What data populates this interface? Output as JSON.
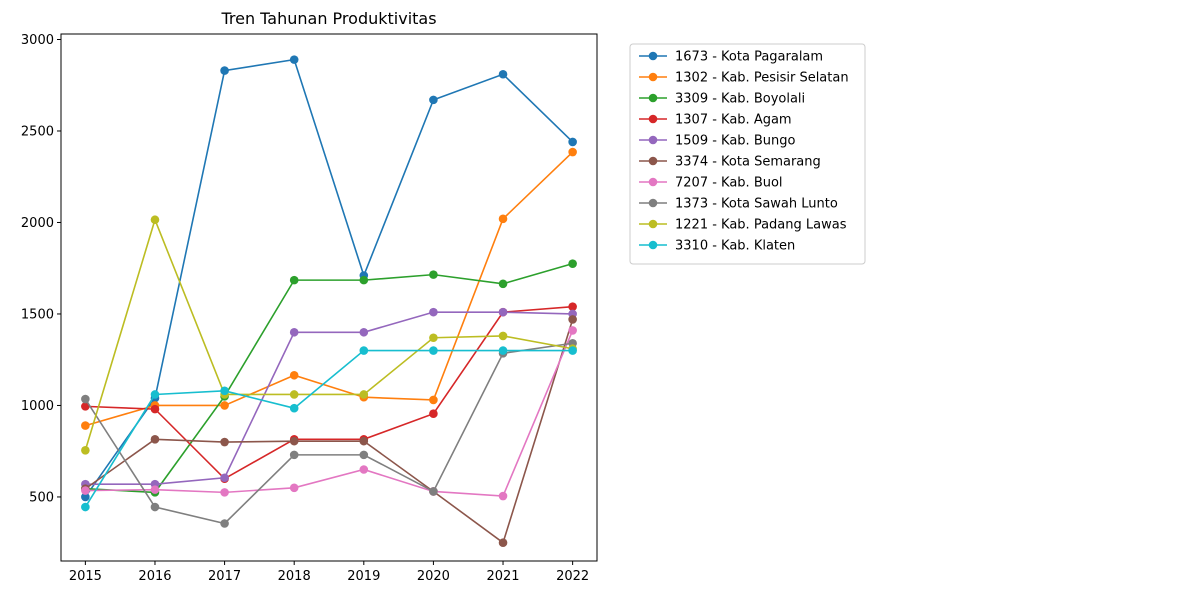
{
  "chart_data": {
    "type": "line",
    "title": "Tren Tahunan Produktivitas",
    "xlabel": "",
    "ylabel": "",
    "x": [
      2015,
      2016,
      2017,
      2018,
      2019,
      2020,
      2021,
      2022
    ],
    "x_tick_labels": [
      "2015",
      "2016",
      "2017",
      "2018",
      "2019",
      "2020",
      "2021",
      "2022"
    ],
    "ylim": [
      150,
      3030
    ],
    "y_ticks": [
      500,
      1000,
      1500,
      2000,
      2500,
      3000
    ],
    "y_tick_labels": [
      "500",
      "1000",
      "1500",
      "2000",
      "2500",
      "3000"
    ],
    "grid": false,
    "legend_position": "outside-right-top",
    "series": [
      {
        "name": "1673 - Kota Pagaralam",
        "color": "#1f77b4",
        "values": [
          500,
          1040,
          2830,
          2890,
          1710,
          2670,
          2810,
          2440
        ]
      },
      {
        "name": "1302 - Kab. Pesisir Selatan",
        "color": "#ff7f0e",
        "values": [
          890,
          1000,
          1000,
          1165,
          1045,
          1030,
          2020,
          2385
        ]
      },
      {
        "name": "3309 - Kab. Boyolali",
        "color": "#2ca02c",
        "values": [
          545,
          525,
          1050,
          1685,
          1685,
          1715,
          1665,
          1775
        ]
      },
      {
        "name": "1307 - Kab. Agam",
        "color": "#d62728",
        "values": [
          995,
          980,
          600,
          815,
          815,
          955,
          1510,
          1540
        ]
      },
      {
        "name": "1509 - Kab. Bungo",
        "color": "#9467bd",
        "values": [
          570,
          570,
          605,
          1400,
          1400,
          1510,
          1510,
          1500
        ]
      },
      {
        "name": "3374 - Kota Semarang",
        "color": "#8c564b",
        "values": [
          545,
          815,
          800,
          805,
          805,
          530,
          250,
          1470
        ]
      },
      {
        "name": "7207 - Kab. Buol",
        "color": "#e377c2",
        "values": [
          535,
          540,
          525,
          550,
          650,
          530,
          505,
          1410
        ]
      },
      {
        "name": "1373 - Kota Sawah Lunto",
        "color": "#7f7f7f",
        "values": [
          1035,
          445,
          355,
          730,
          730,
          530,
          1285,
          1340
        ]
      },
      {
        "name": "1221 - Kab. Padang Lawas",
        "color": "#bcbd22",
        "values": [
          755,
          2015,
          1060,
          1060,
          1060,
          1370,
          1380,
          1310
        ]
      },
      {
        "name": "3310 - Kab. Klaten",
        "color": "#17becf",
        "values": [
          445,
          1060,
          1080,
          985,
          1300,
          1300,
          1300,
          1300
        ]
      }
    ]
  }
}
